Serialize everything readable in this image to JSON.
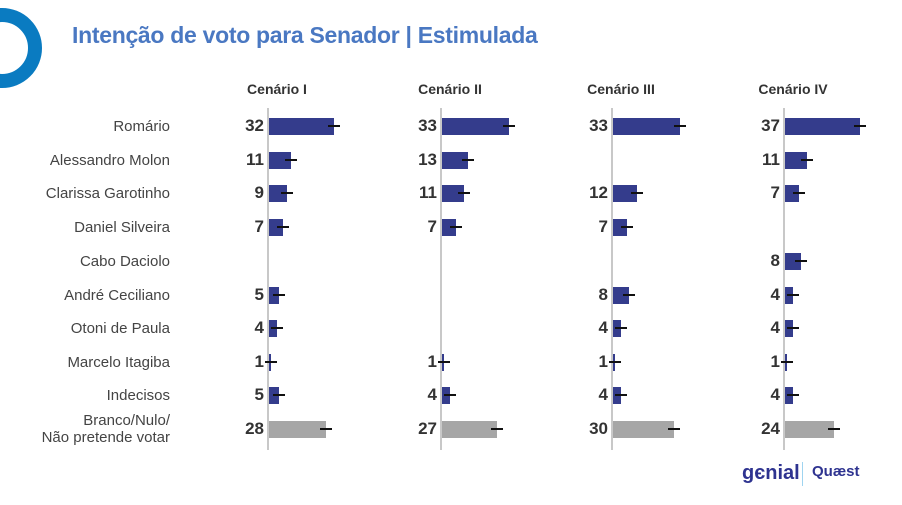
{
  "title": "Intenção de voto para Senador | Estimulada",
  "logos": {
    "left": "genial investimentos",
    "right": "Quaest consultoria e pesquisa"
  },
  "colors": {
    "candidate": "#343c8c",
    "other": "#a6a6a6",
    "title": "#4a78c2"
  },
  "chart_data": {
    "type": "bar",
    "title": "Intenção de voto para Senador | Estimulada",
    "categories": [
      "Romário",
      "Alessandro Molon",
      "Clarissa Garotinho",
      "Daniel Silveira",
      "Cabo Daciolo",
      "André Ceciliano",
      "Otoni de Paula",
      "Marcelo Itagiba",
      "Indecisos",
      "Branco/Nulo/\nNão pretende votar"
    ],
    "series": [
      {
        "name": "Cenário I",
        "values": [
          32,
          11,
          9,
          7,
          null,
          5,
          4,
          1,
          5,
          28
        ]
      },
      {
        "name": "Cenário II",
        "values": [
          33,
          13,
          11,
          7,
          null,
          null,
          null,
          1,
          4,
          27
        ]
      },
      {
        "name": "Cenário III",
        "values": [
          33,
          null,
          12,
          7,
          null,
          8,
          4,
          1,
          4,
          30
        ]
      },
      {
        "name": "Cenário IV",
        "values": [
          37,
          11,
          7,
          null,
          8,
          4,
          4,
          1,
          4,
          24
        ]
      }
    ],
    "error_bars": true
  }
}
